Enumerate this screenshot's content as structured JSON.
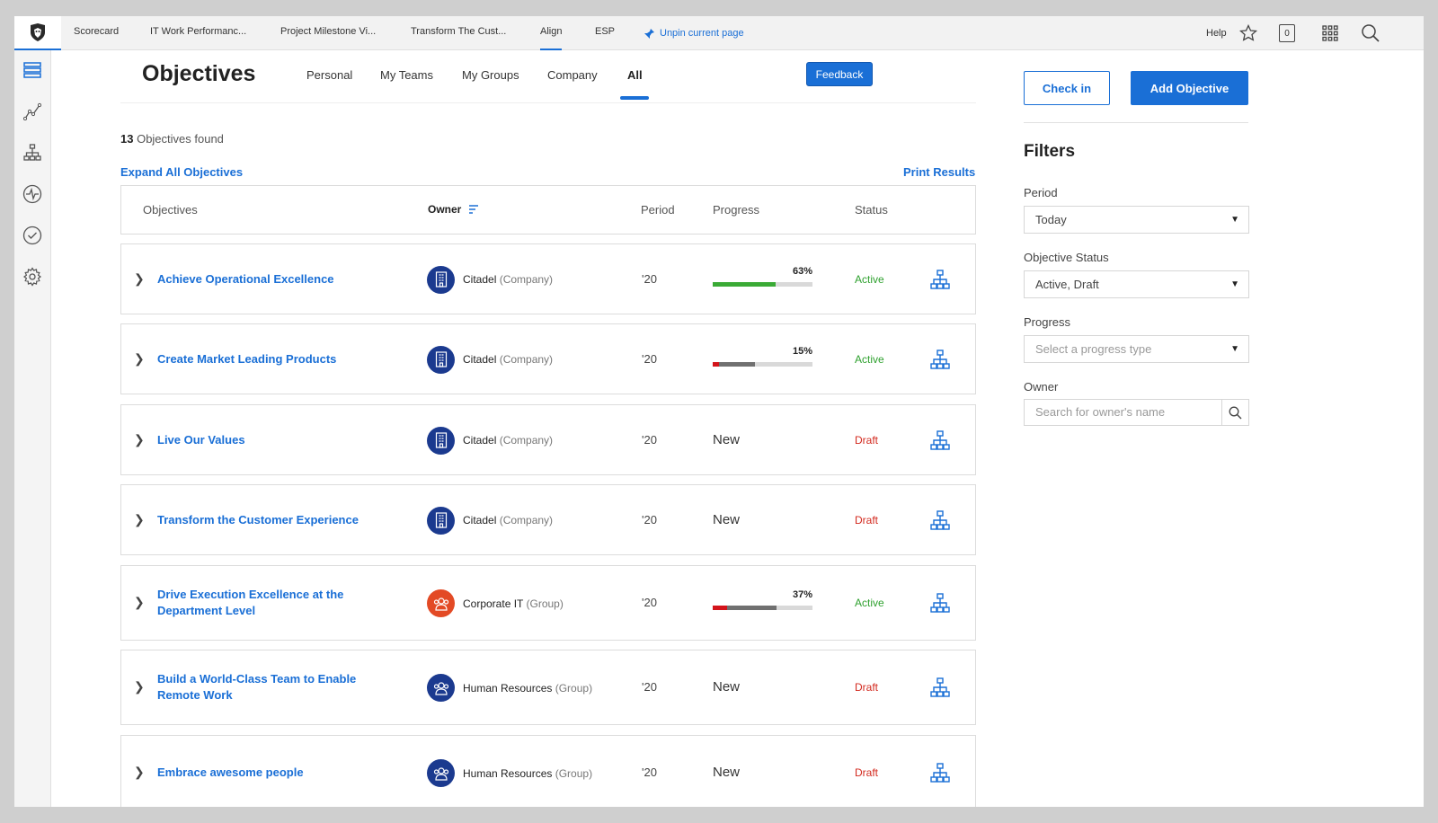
{
  "topbar": {
    "tabs": [
      "Scorecard",
      "IT Work Performanc...",
      "Project Milestone Vi...",
      "Transform The Cust...",
      "Align",
      "ESP"
    ],
    "unpin_label": "Unpin current page",
    "help_label": "Help",
    "badge_count": "0"
  },
  "header": {
    "title": "Objectives",
    "subtabs": [
      "Personal",
      "My Teams",
      "My Groups",
      "Company",
      "All"
    ],
    "active_subtab": "All",
    "feedback_label": "Feedback"
  },
  "results": {
    "count": "13",
    "count_suffix": " Objectives found",
    "expand_all": "Expand All Objectives",
    "print": "Print Results"
  },
  "table": {
    "headers": {
      "objectives": "Objectives",
      "owner": "Owner",
      "period": "Period",
      "progress": "Progress",
      "status": "Status"
    },
    "rows": [
      {
        "title": "Achieve Operational Excellence",
        "owner": "Citadel",
        "owner_type": "(Company)",
        "avatar": "company",
        "period": "'20",
        "progress_pct": "63%",
        "progress": 0.63,
        "progress_color": "#3aaa35",
        "progress_label": "",
        "status": "Active"
      },
      {
        "title": "Create Market Leading Products",
        "owner": "Citadel",
        "owner_type": "(Company)",
        "avatar": "company",
        "period": "'20",
        "progress_pct": "15%",
        "progress": 0.15,
        "progress_color": "#d3141b",
        "progress_label": "",
        "status": "Active"
      },
      {
        "title": "Live Our Values",
        "owner": "Citadel",
        "owner_type": "(Company)",
        "avatar": "company",
        "period": "'20",
        "progress_pct": "",
        "progress": null,
        "progress_color": "",
        "progress_label": "New",
        "status": "Draft"
      },
      {
        "title": "Transform the Customer Experience",
        "owner": "Citadel",
        "owner_type": "(Company)",
        "avatar": "company",
        "period": "'20",
        "progress_pct": "",
        "progress": null,
        "progress_color": "",
        "progress_label": "New",
        "status": "Draft"
      },
      {
        "title": "Drive Execution Excellence at the Department Level",
        "owner": "Corporate IT",
        "owner_type": "(Group)",
        "avatar": "group-red",
        "period": "'20",
        "progress_pct": "37%",
        "progress": 0.37,
        "progress_color": "#d3141b",
        "progress_label": "",
        "status": "Active"
      },
      {
        "title": "Build a World-Class Team to Enable Remote Work",
        "owner": "Human Resources",
        "owner_type": "(Group)",
        "avatar": "group-blue",
        "period": "'20",
        "progress_pct": "",
        "progress": null,
        "progress_color": "",
        "progress_label": "New",
        "status": "Draft"
      },
      {
        "title": "Embrace awesome people",
        "owner": "Human Resources",
        "owner_type": "(Group)",
        "avatar": "group-blue",
        "period": "'20",
        "progress_pct": "",
        "progress": null,
        "progress_color": "",
        "progress_label": "New",
        "status": "Draft"
      }
    ]
  },
  "actions": {
    "check_in": "Check in",
    "add_objective": "Add Objective"
  },
  "filters": {
    "title": "Filters",
    "period_label": "Period",
    "period_value": "Today",
    "status_label": "Objective Status",
    "status_value": "Active, Draft",
    "progress_label": "Progress",
    "progress_placeholder": "Select a progress type",
    "owner_label": "Owner",
    "owner_placeholder": "Search for owner's name"
  },
  "colors": {
    "accent": "#1a6fd6",
    "active": "#2fa12f",
    "draft": "#d32a1f"
  }
}
